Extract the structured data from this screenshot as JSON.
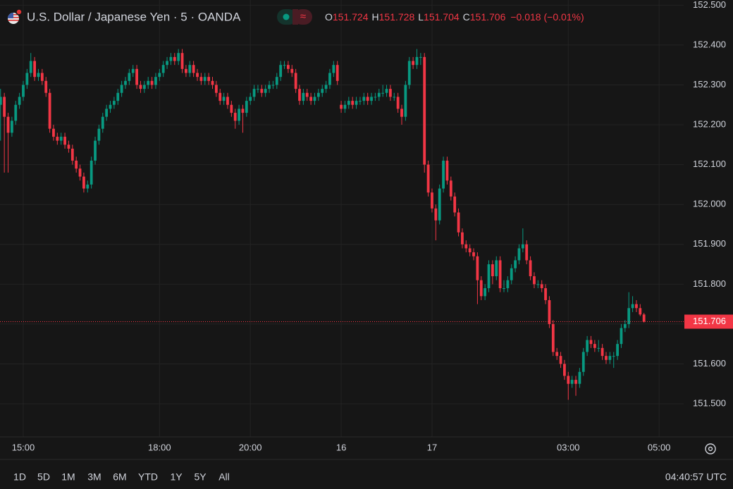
{
  "chart_data": {
    "type": "candlestick",
    "title": "U.S. Dollar / Japanese Yen · 5 · OANDA",
    "status_symbol": "≈",
    "legend_values": [
      {
        "label": "O",
        "value": "151.724"
      },
      {
        "label": "H",
        "value": "151.728"
      },
      {
        "label": "L",
        "value": "151.704"
      },
      {
        "label": "C",
        "value": "151.706"
      }
    ],
    "change": "−0.018 (−0.01%)",
    "up_color": "#089981",
    "down_color": "#f23645",
    "grid": true,
    "ylim": [
      151.417,
      152.513
    ],
    "yticks": [
      {
        "value": 152.5,
        "label": "152.500"
      },
      {
        "value": 152.4,
        "label": "152.400"
      },
      {
        "value": 152.3,
        "label": "152.300"
      },
      {
        "value": 152.2,
        "label": "152.200"
      },
      {
        "value": 152.1,
        "label": "152.100"
      },
      {
        "value": 152.0,
        "label": "152.000"
      },
      {
        "value": 151.9,
        "label": "151.900"
      },
      {
        "value": 151.8,
        "label": "151.800"
      },
      {
        "value": 151.7,
        "label": "151.700"
      },
      {
        "value": 151.6,
        "label": "151.600"
      },
      {
        "value": 151.5,
        "label": "151.500"
      }
    ],
    "last_price": {
      "value": 151.706,
      "label": "151.706"
    },
    "categories": [
      null,
      null,
      null,
      null,
      null,
      null,
      "15:00",
      null,
      null,
      null,
      null,
      null,
      null,
      null,
      null,
      null,
      null,
      null,
      null,
      null,
      null,
      null,
      null,
      null,
      null,
      null,
      null,
      null,
      null,
      null,
      null,
      null,
      null,
      null,
      null,
      null,
      null,
      null,
      null,
      null,
      null,
      null,
      "18:00",
      null,
      null,
      null,
      null,
      null,
      null,
      null,
      null,
      null,
      null,
      null,
      null,
      null,
      null,
      null,
      null,
      null,
      null,
      null,
      null,
      null,
      null,
      null,
      "20:00",
      null,
      null,
      null,
      null,
      null,
      null,
      null,
      null,
      null,
      null,
      null,
      null,
      null,
      null,
      null,
      null,
      null,
      null,
      null,
      null,
      null,
      null,
      null,
      "16",
      null,
      null,
      null,
      null,
      null,
      null,
      null,
      null,
      null,
      null,
      null,
      null,
      null,
      null,
      null,
      null,
      null,
      null,
      null,
      null,
      null,
      null,
      null,
      "17",
      null,
      null,
      null,
      null,
      null,
      null,
      null,
      null,
      null,
      null,
      null,
      null,
      null,
      null,
      null,
      null,
      null,
      null,
      null,
      null,
      null,
      null,
      null,
      null,
      null,
      null,
      null,
      null,
      null,
      null,
      null,
      null,
      null,
      null,
      null,
      "03:00",
      null,
      null,
      null,
      null,
      null,
      null,
      null,
      null,
      null,
      null,
      null,
      null,
      null,
      null,
      null,
      null,
      null,
      null,
      null,
      null,
      null,
      null,
      null,
      "05:00"
    ],
    "ohlc": [
      [
        152.25,
        152.29,
        152.16,
        152.27
      ],
      [
        152.27,
        152.28,
        152.08,
        152.22
      ],
      [
        152.22,
        152.23,
        152.08,
        152.18
      ],
      [
        152.18,
        152.22,
        152.17,
        152.21
      ],
      [
        152.21,
        152.26,
        152.2,
        152.25
      ],
      [
        152.25,
        152.28,
        152.24,
        152.27
      ],
      [
        152.27,
        152.31,
        152.26,
        152.3
      ],
      [
        152.3,
        152.34,
        152.29,
        152.33
      ],
      [
        152.33,
        152.38,
        152.32,
        152.36
      ],
      [
        152.36,
        152.37,
        152.31,
        152.32
      ],
      [
        152.32,
        152.34,
        152.31,
        152.33
      ],
      [
        152.33,
        152.34,
        152.3,
        152.31
      ],
      [
        152.31,
        152.32,
        152.27,
        152.28
      ],
      [
        152.28,
        152.29,
        152.18,
        152.19
      ],
      [
        152.19,
        152.2,
        152.16,
        152.17
      ],
      [
        152.17,
        152.18,
        152.15,
        152.16
      ],
      [
        152.16,
        152.18,
        152.15,
        152.17
      ],
      [
        152.17,
        152.18,
        152.14,
        152.15
      ],
      [
        152.15,
        152.16,
        152.13,
        152.14
      ],
      [
        152.14,
        152.15,
        152.1,
        152.11
      ],
      [
        152.11,
        152.12,
        152.08,
        152.09
      ],
      [
        152.09,
        152.1,
        152.06,
        152.07
      ],
      [
        152.07,
        152.08,
        152.03,
        152.04
      ],
      [
        152.04,
        152.06,
        152.03,
        152.05
      ],
      [
        152.05,
        152.12,
        152.04,
        152.11
      ],
      [
        152.11,
        152.17,
        152.1,
        152.16
      ],
      [
        152.16,
        152.2,
        152.15,
        152.19
      ],
      [
        152.19,
        152.23,
        152.18,
        152.22
      ],
      [
        152.22,
        152.25,
        152.21,
        152.24
      ],
      [
        152.24,
        152.26,
        152.23,
        152.25
      ],
      [
        152.25,
        152.27,
        152.24,
        152.26
      ],
      [
        152.26,
        152.29,
        152.25,
        152.28
      ],
      [
        152.28,
        152.31,
        152.27,
        152.3
      ],
      [
        152.3,
        152.32,
        152.29,
        152.31
      ],
      [
        152.31,
        152.34,
        152.3,
        152.33
      ],
      [
        152.33,
        152.35,
        152.32,
        152.34
      ],
      [
        152.34,
        152.35,
        152.29,
        152.3
      ],
      [
        152.3,
        152.31,
        152.28,
        152.29
      ],
      [
        152.29,
        152.31,
        152.28,
        152.3
      ],
      [
        152.3,
        152.32,
        152.29,
        152.31
      ],
      [
        152.31,
        152.32,
        152.29,
        152.3
      ],
      [
        152.3,
        152.33,
        152.29,
        152.32
      ],
      [
        152.32,
        152.34,
        152.31,
        152.33
      ],
      [
        152.33,
        152.36,
        152.32,
        152.35
      ],
      [
        152.35,
        152.37,
        152.34,
        152.36
      ],
      [
        152.36,
        152.38,
        152.35,
        152.37
      ],
      [
        152.37,
        152.38,
        152.35,
        152.36
      ],
      [
        152.36,
        152.39,
        152.35,
        152.38
      ],
      [
        152.38,
        152.39,
        152.33,
        152.34
      ],
      [
        152.34,
        152.35,
        152.32,
        152.33
      ],
      [
        152.33,
        152.36,
        152.32,
        152.35
      ],
      [
        152.35,
        152.36,
        152.32,
        152.33
      ],
      [
        152.33,
        152.34,
        152.31,
        152.32
      ],
      [
        152.32,
        152.33,
        152.3,
        152.31
      ],
      [
        152.31,
        152.33,
        152.3,
        152.32
      ],
      [
        152.32,
        152.33,
        152.3,
        152.31
      ],
      [
        152.31,
        152.32,
        152.29,
        152.3
      ],
      [
        152.3,
        152.31,
        152.27,
        152.28
      ],
      [
        152.28,
        152.29,
        152.25,
        152.26
      ],
      [
        152.26,
        152.28,
        152.25,
        152.27
      ],
      [
        152.27,
        152.28,
        152.24,
        152.25
      ],
      [
        152.25,
        152.26,
        152.22,
        152.23
      ],
      [
        152.23,
        152.24,
        152.19,
        152.21
      ],
      [
        152.21,
        152.25,
        152.2,
        152.24
      ],
      [
        152.24,
        152.25,
        152.18,
        152.23
      ],
      [
        152.23,
        152.27,
        152.22,
        152.26
      ],
      [
        152.26,
        152.28,
        152.25,
        152.27
      ],
      [
        152.27,
        152.3,
        152.26,
        152.29
      ],
      [
        152.29,
        152.3,
        152.28,
        152.29
      ],
      [
        152.29,
        152.3,
        152.27,
        152.28
      ],
      [
        152.28,
        152.3,
        152.27,
        152.29
      ],
      [
        152.29,
        152.31,
        152.28,
        152.3
      ],
      [
        152.3,
        152.31,
        152.29,
        152.3
      ],
      [
        152.3,
        152.33,
        152.29,
        152.32
      ],
      [
        152.32,
        152.36,
        152.31,
        152.35
      ],
      [
        152.35,
        152.36,
        152.34,
        152.35
      ],
      [
        152.35,
        152.36,
        152.33,
        152.34
      ],
      [
        152.34,
        152.35,
        152.32,
        152.33
      ],
      [
        152.33,
        152.34,
        152.28,
        152.29
      ],
      [
        152.29,
        152.3,
        152.25,
        152.26
      ],
      [
        152.26,
        152.29,
        152.25,
        152.28
      ],
      [
        152.28,
        152.29,
        152.26,
        152.27
      ],
      [
        152.27,
        152.28,
        152.25,
        152.26
      ],
      [
        152.26,
        152.28,
        152.25,
        152.27
      ],
      [
        152.27,
        152.29,
        152.26,
        152.28
      ],
      [
        152.28,
        152.3,
        152.27,
        152.29
      ],
      [
        152.29,
        152.31,
        152.28,
        152.3
      ],
      [
        152.3,
        152.34,
        152.29,
        152.33
      ],
      [
        152.33,
        152.36,
        152.32,
        152.35
      ],
      [
        152.35,
        152.36,
        152.3,
        152.31
      ],
      [
        152.25,
        152.26,
        152.23,
        152.24
      ],
      [
        152.24,
        152.26,
        152.23,
        152.25
      ],
      [
        152.25,
        152.27,
        152.24,
        152.26
      ],
      [
        152.26,
        152.27,
        152.24,
        152.25
      ],
      [
        152.25,
        152.27,
        152.24,
        152.26
      ],
      [
        152.26,
        152.27,
        152.25,
        152.26
      ],
      [
        152.26,
        152.28,
        152.25,
        152.27
      ],
      [
        152.27,
        152.28,
        152.25,
        152.26
      ],
      [
        152.26,
        152.28,
        152.25,
        152.27
      ],
      [
        152.27,
        152.28,
        152.26,
        152.27
      ],
      [
        152.27,
        152.29,
        152.26,
        152.28
      ],
      [
        152.28,
        152.3,
        152.27,
        152.28
      ],
      [
        152.28,
        152.3,
        152.27,
        152.29
      ],
      [
        152.29,
        152.3,
        152.26,
        152.27
      ],
      [
        152.27,
        152.28,
        152.26,
        152.27
      ],
      [
        152.27,
        152.28,
        152.23,
        152.24
      ],
      [
        152.24,
        152.25,
        152.2,
        152.22
      ],
      [
        152.22,
        152.31,
        152.21,
        152.3
      ],
      [
        152.3,
        152.37,
        152.29,
        152.36
      ],
      [
        152.36,
        152.37,
        152.34,
        152.35
      ],
      [
        152.35,
        152.39,
        152.34,
        152.37
      ],
      [
        152.37,
        152.38,
        152.35,
        152.37
      ],
      [
        152.37,
        152.38,
        152.08,
        152.1
      ],
      [
        152.1,
        152.11,
        152.02,
        152.03
      ],
      [
        152.03,
        152.04,
        151.98,
        151.99
      ],
      [
        151.99,
        152.0,
        151.91,
        151.96
      ],
      [
        151.96,
        152.05,
        151.95,
        152.04
      ],
      [
        152.04,
        152.12,
        152.03,
        152.11
      ],
      [
        152.11,
        152.12,
        152.05,
        152.06
      ],
      [
        152.06,
        152.07,
        152.01,
        152.02
      ],
      [
        152.02,
        152.03,
        151.97,
        151.98
      ],
      [
        151.98,
        151.99,
        151.92,
        151.93
      ],
      [
        151.93,
        151.94,
        151.89,
        151.9
      ],
      [
        151.9,
        151.91,
        151.88,
        151.89
      ],
      [
        151.89,
        151.9,
        151.87,
        151.88
      ],
      [
        151.88,
        151.89,
        151.86,
        151.87
      ],
      [
        151.87,
        151.88,
        151.75,
        151.81
      ],
      [
        151.81,
        151.82,
        151.76,
        151.77
      ],
      [
        151.77,
        151.8,
        151.76,
        151.79
      ],
      [
        151.79,
        151.86,
        151.78,
        151.85
      ],
      [
        151.85,
        151.86,
        151.8,
        151.82
      ],
      [
        151.82,
        151.87,
        151.81,
        151.86
      ],
      [
        151.86,
        151.87,
        151.78,
        151.79
      ],
      [
        151.79,
        151.81,
        151.78,
        151.79
      ],
      [
        151.79,
        151.82,
        151.78,
        151.81
      ],
      [
        151.81,
        151.85,
        151.8,
        151.84
      ],
      [
        151.84,
        151.87,
        151.83,
        151.86
      ],
      [
        151.86,
        151.9,
        151.85,
        151.89
      ],
      [
        151.89,
        151.94,
        151.88,
        151.9
      ],
      [
        151.9,
        151.91,
        151.85,
        151.86
      ],
      [
        151.86,
        151.87,
        151.81,
        151.82
      ],
      [
        151.82,
        151.83,
        151.79,
        151.8
      ],
      [
        151.8,
        151.81,
        151.79,
        151.8
      ],
      [
        151.8,
        151.81,
        151.78,
        151.79
      ],
      [
        151.79,
        151.8,
        151.75,
        151.76
      ],
      [
        151.76,
        151.77,
        151.69,
        151.7
      ],
      [
        151.7,
        151.71,
        151.62,
        151.63
      ],
      [
        151.63,
        151.64,
        151.61,
        151.62
      ],
      [
        151.62,
        151.63,
        151.59,
        151.6
      ],
      [
        151.6,
        151.61,
        151.56,
        151.57
      ],
      [
        151.57,
        151.58,
        151.51,
        151.55
      ],
      [
        151.55,
        151.57,
        151.54,
        151.56
      ],
      [
        151.56,
        151.57,
        151.52,
        151.55
      ],
      [
        151.55,
        151.59,
        151.54,
        151.58
      ],
      [
        151.58,
        151.64,
        151.57,
        151.63
      ],
      [
        151.63,
        151.67,
        151.62,
        151.66
      ],
      [
        151.66,
        151.67,
        151.64,
        151.65
      ],
      [
        151.65,
        151.66,
        151.63,
        151.64
      ],
      [
        151.64,
        151.66,
        151.63,
        151.64
      ],
      [
        151.64,
        151.65,
        151.61,
        151.62
      ],
      [
        151.62,
        151.63,
        151.6,
        151.61
      ],
      [
        151.61,
        151.63,
        151.6,
        151.62
      ],
      [
        151.62,
        151.63,
        151.59,
        151.62
      ],
      [
        151.62,
        151.66,
        151.61,
        151.65
      ],
      [
        151.65,
        151.7,
        151.64,
        151.69
      ],
      [
        151.69,
        151.71,
        151.68,
        151.7
      ],
      [
        151.7,
        151.78,
        151.69,
        151.74
      ],
      [
        151.74,
        151.77,
        151.73,
        151.75
      ],
      [
        151.75,
        151.76,
        151.73,
        151.74
      ],
      [
        151.74,
        151.75,
        151.72,
        151.724
      ],
      [
        151.724,
        151.728,
        151.704,
        151.706
      ],
      null,
      null,
      null,
      null
    ]
  },
  "toolbar": {
    "ranges": [
      "1D",
      "5D",
      "1M",
      "3M",
      "6M",
      "YTD",
      "1Y",
      "5Y",
      "All"
    ],
    "clock": "04:40:57 UTC"
  }
}
